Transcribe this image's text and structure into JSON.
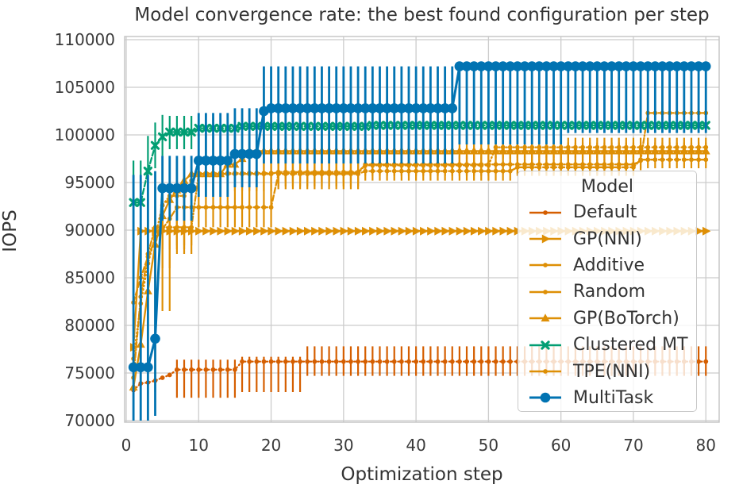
{
  "title": "Model convergence rate: the best found configuration per step",
  "axes": {
    "xlabel": "Optimization step",
    "ylabel": "IOPS",
    "x_ticks": [
      0,
      10,
      20,
      30,
      40,
      50,
      60,
      70,
      80
    ],
    "y_ticks": [
      70000,
      75000,
      80000,
      85000,
      90000,
      95000,
      100000,
      105000,
      110000
    ],
    "xlim": [
      0,
      82
    ],
    "ylim": [
      70000,
      110000
    ],
    "grid": true
  },
  "legend": {
    "title": "Model",
    "position": "lower right"
  },
  "colors": {
    "vermillion": "#d55e00",
    "orange": "#de8f05",
    "green": "#029e73",
    "blue": "#0173b2",
    "grid": "#cccccc",
    "text": "#3a3a3a"
  },
  "chart_data": {
    "type": "line",
    "x_range": [
      1,
      80
    ],
    "x_unit": "step",
    "note": "values_by_segment = [fromStep, toStep, bestIOPS]; error_by_segment = [fromStep, toStep, low, high]",
    "series": [
      {
        "name": "Default",
        "color": "#d55e00",
        "marker": "dot",
        "dash": "dotted",
        "values_by_segment": [
          [
            1,
            1,
            73200
          ],
          [
            2,
            2,
            73900
          ],
          [
            3,
            3,
            74000
          ],
          [
            4,
            4,
            74200
          ],
          [
            5,
            5,
            74500
          ],
          [
            6,
            6,
            74800
          ],
          [
            7,
            15,
            75350
          ],
          [
            16,
            80,
            76200
          ]
        ],
        "error_by_segment": [
          [
            7,
            15,
            72400,
            76400
          ],
          [
            16,
            24,
            73000,
            76700
          ],
          [
            25,
            80,
            74700,
            77800
          ]
        ]
      },
      {
        "name": "GP(NNI)",
        "color": "#de8f05",
        "marker": "triangle-right",
        "dash": "solid",
        "values_by_segment": [
          [
            1,
            1,
            77700
          ],
          [
            2,
            80,
            89900
          ]
        ],
        "error_by_segment": [
          [
            1,
            1,
            70000,
            85500
          ],
          [
            2,
            2,
            70500,
            95500
          ],
          [
            3,
            3,
            83500,
            95000
          ],
          [
            4,
            4,
            84500,
            94500
          ],
          [
            5,
            6,
            86000,
            94000
          ],
          [
            7,
            9,
            87500,
            93200
          ]
        ]
      },
      {
        "name": "Additive",
        "color": "#de8f05",
        "marker": "dot",
        "dash": "dashdot",
        "values_by_segment": [
          [
            1,
            1,
            74500
          ],
          [
            2,
            2,
            83000
          ],
          [
            3,
            3,
            87500
          ],
          [
            4,
            9,
            90300
          ],
          [
            10,
            20,
            95900
          ],
          [
            21,
            32,
            96100
          ],
          [
            33,
            70,
            96900
          ],
          [
            71,
            71,
            97300
          ],
          [
            72,
            80,
            102300
          ]
        ],
        "error_by_segment": [
          [
            2,
            3,
            74000,
            90500
          ],
          [
            4,
            9,
            88400,
            92200
          ],
          [
            10,
            20,
            94100,
            97500
          ],
          [
            21,
            32,
            95100,
            97300
          ],
          [
            33,
            70,
            95900,
            97800
          ],
          [
            71,
            71,
            96300,
            98200
          ],
          [
            72,
            80,
            101200,
            103400
          ]
        ]
      },
      {
        "name": "Random",
        "color": "#de8f05",
        "marker": "dot",
        "dash": "dashed",
        "values_by_segment": [
          [
            1,
            1,
            82400
          ],
          [
            2,
            2,
            85000
          ],
          [
            3,
            3,
            87200
          ],
          [
            4,
            4,
            89000
          ],
          [
            5,
            5,
            90100
          ],
          [
            6,
            6,
            91200
          ],
          [
            7,
            20,
            92400
          ],
          [
            21,
            32,
            95900
          ],
          [
            33,
            53,
            96200
          ],
          [
            54,
            70,
            96600
          ],
          [
            71,
            80,
            97400
          ]
        ],
        "error_by_segment": [
          [
            2,
            6,
            81500,
            92500
          ],
          [
            7,
            20,
            90300,
            94700
          ],
          [
            21,
            32,
            94300,
            97200
          ],
          [
            33,
            53,
            95200,
            97300
          ],
          [
            54,
            70,
            95700,
            97500
          ],
          [
            71,
            80,
            96500,
            98300
          ]
        ]
      },
      {
        "name": "GP(BoTorch)",
        "color": "#de8f05",
        "marker": "triangle-up",
        "dash": "solid",
        "values_by_segment": [
          [
            1,
            1,
            73500
          ],
          [
            2,
            2,
            78000
          ],
          [
            3,
            3,
            83600
          ],
          [
            4,
            4,
            88500
          ],
          [
            5,
            5,
            91500
          ],
          [
            6,
            6,
            93200
          ],
          [
            7,
            7,
            94200
          ],
          [
            8,
            8,
            95200
          ],
          [
            9,
            13,
            95900
          ],
          [
            14,
            15,
            96900
          ],
          [
            16,
            16,
            97500
          ],
          [
            17,
            80,
            98300
          ]
        ],
        "error_by_segment": [
          [
            2,
            4,
            73000,
            91500
          ],
          [
            5,
            8,
            88000,
            95800
          ],
          [
            9,
            13,
            93800,
            97400
          ],
          [
            14,
            16,
            95500,
            98300
          ],
          [
            17,
            80,
            97400,
            99200
          ]
        ]
      },
      {
        "name": "Clustered MT",
        "color": "#029e73",
        "marker": "x",
        "dash": "dashed",
        "values_by_segment": [
          [
            1,
            2,
            92900
          ],
          [
            3,
            3,
            96200
          ],
          [
            4,
            4,
            98900
          ],
          [
            5,
            5,
            99800
          ],
          [
            6,
            9,
            100300
          ],
          [
            10,
            15,
            100700
          ],
          [
            16,
            33,
            100900
          ],
          [
            34,
            80,
            101000
          ]
        ],
        "error_by_segment": [
          [
            1,
            2,
            90600,
            97300
          ],
          [
            3,
            3,
            93500,
            99900
          ],
          [
            4,
            4,
            96500,
            101300
          ],
          [
            5,
            5,
            97800,
            102100
          ],
          [
            6,
            9,
            98500,
            102000
          ],
          [
            10,
            15,
            99600,
            101900
          ],
          [
            16,
            24,
            100200,
            101600
          ]
        ]
      },
      {
        "name": "TPE(NNI)",
        "color": "#de8f05",
        "marker": "dot",
        "dash": "dotted",
        "values_by_segment": [
          [
            1,
            1,
            76500
          ],
          [
            2,
            2,
            82300
          ],
          [
            3,
            3,
            86500
          ],
          [
            4,
            4,
            89300
          ],
          [
            5,
            5,
            92600
          ],
          [
            6,
            8,
            93600
          ],
          [
            9,
            9,
            95200
          ],
          [
            10,
            32,
            96000
          ],
          [
            33,
            50,
            96800
          ],
          [
            51,
            80,
            98700
          ]
        ],
        "error_by_segment": [
          [
            2,
            4,
            74500,
            90500
          ],
          [
            5,
            8,
            90500,
            95600
          ],
          [
            10,
            32,
            94600,
            97400
          ],
          [
            33,
            50,
            95700,
            97900
          ],
          [
            51,
            80,
            97600,
            99700
          ]
        ]
      },
      {
        "name": "MultiTask",
        "color": "#0173b2",
        "marker": "circle",
        "dash": "solid",
        "values_by_segment": [
          [
            1,
            3,
            75600
          ],
          [
            4,
            4,
            78600
          ],
          [
            5,
            9,
            94400
          ],
          [
            10,
            14,
            97300
          ],
          [
            15,
            18,
            98000
          ],
          [
            19,
            19,
            102500
          ],
          [
            20,
            45,
            102800
          ],
          [
            46,
            80,
            107200
          ]
        ],
        "error_by_segment": [
          [
            1,
            3,
            70000,
            95800
          ],
          [
            4,
            4,
            70500,
            96200
          ],
          [
            5,
            9,
            91000,
            97800
          ],
          [
            10,
            14,
            93500,
            102300
          ],
          [
            15,
            18,
            94500,
            102800
          ],
          [
            19,
            45,
            97000,
            107200
          ],
          [
            46,
            60,
            99000,
            107500
          ],
          [
            61,
            80,
            100200,
            107500
          ]
        ]
      }
    ]
  }
}
